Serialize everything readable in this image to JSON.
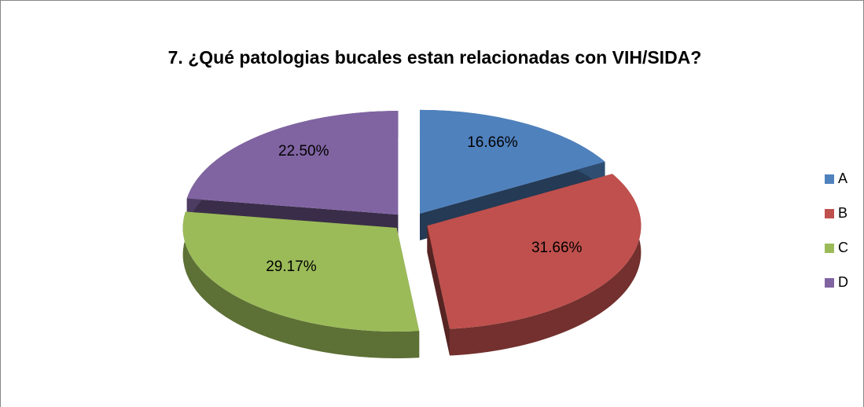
{
  "chart_data": {
    "type": "pie",
    "title": "7. ¿Qué patologias bucales estan relacionadas con VIH/SIDA?",
    "categories": [
      "A",
      "B",
      "C",
      "D"
    ],
    "values": [
      16.66,
      31.66,
      29.17,
      22.5
    ],
    "value_labels": [
      "16.66%",
      "31.66%",
      "29.17%",
      "22.50%"
    ],
    "colors": [
      "#4f81bd",
      "#c0504d",
      "#9bbb59",
      "#8064a2"
    ],
    "legend": "right"
  }
}
